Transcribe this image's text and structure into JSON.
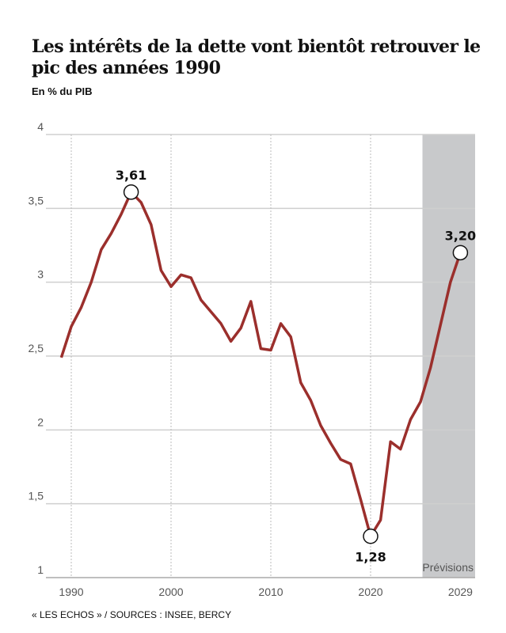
{
  "chart_data": {
    "type": "line",
    "title": "Les intérêts de la dette vont bientôt retrouver le pic des années 1990",
    "subtitle": "En % du PIB",
    "source": "« LES ECHOS » / SOURCES : INSEE, BERCY",
    "xlabel": "",
    "ylabel": "En % du PIB",
    "ylim": [
      1,
      4
    ],
    "xlim": [
      1989,
      2029
    ],
    "y_ticks": [
      {
        "value": 1,
        "label": "1"
      },
      {
        "value": 1.5,
        "label": "1,5"
      },
      {
        "value": 2,
        "label": "2"
      },
      {
        "value": 2.5,
        "label": "2,5"
      },
      {
        "value": 3,
        "label": "3"
      },
      {
        "value": 3.5,
        "label": "3,5"
      },
      {
        "value": 4,
        "label": "4"
      }
    ],
    "x_ticks": [
      {
        "value": 1990,
        "label": "1990"
      },
      {
        "value": 2000,
        "label": "2000"
      },
      {
        "value": 2010,
        "label": "2010"
      },
      {
        "value": 2020,
        "label": "2020"
      },
      {
        "value": 2029,
        "label": "2029"
      }
    ],
    "grid": true,
    "forecast_region": {
      "from": 2025.2,
      "to": 2030.4,
      "label": "Prévisions"
    },
    "series": [
      {
        "name": "Intérêts de la dette",
        "color": "#9b2f2c",
        "x": [
          1989,
          1990,
          1991,
          1992,
          1993,
          1994,
          1995,
          1996,
          1997,
          1998,
          1999,
          2000,
          2001,
          2002,
          2003,
          2004,
          2005,
          2006,
          2007,
          2008,
          2009,
          2010,
          2011,
          2012,
          2013,
          2014,
          2015,
          2016,
          2017,
          2018,
          2019,
          2020,
          2021,
          2022,
          2023,
          2024,
          2025,
          2026,
          2027,
          2028,
          2029
        ],
        "values": [
          2.49,
          2.7,
          2.83,
          3.0,
          3.22,
          3.33,
          3.46,
          3.61,
          3.54,
          3.39,
          3.08,
          2.97,
          3.05,
          3.03,
          2.88,
          2.8,
          2.72,
          2.6,
          2.69,
          2.87,
          2.55,
          2.54,
          2.72,
          2.63,
          2.32,
          2.2,
          2.03,
          1.91,
          1.8,
          1.77,
          1.53,
          1.28,
          1.39,
          1.92,
          1.87,
          2.07,
          2.19,
          2.42,
          2.71,
          3.0,
          3.2
        ]
      }
    ],
    "annotations": [
      {
        "x": 1996,
        "y": 3.61,
        "label": "3,61",
        "position": "above"
      },
      {
        "x": 2020,
        "y": 1.28,
        "label": "1,28",
        "position": "below"
      },
      {
        "x": 2029,
        "y": 3.2,
        "label": "3,20",
        "position": "above"
      }
    ]
  }
}
